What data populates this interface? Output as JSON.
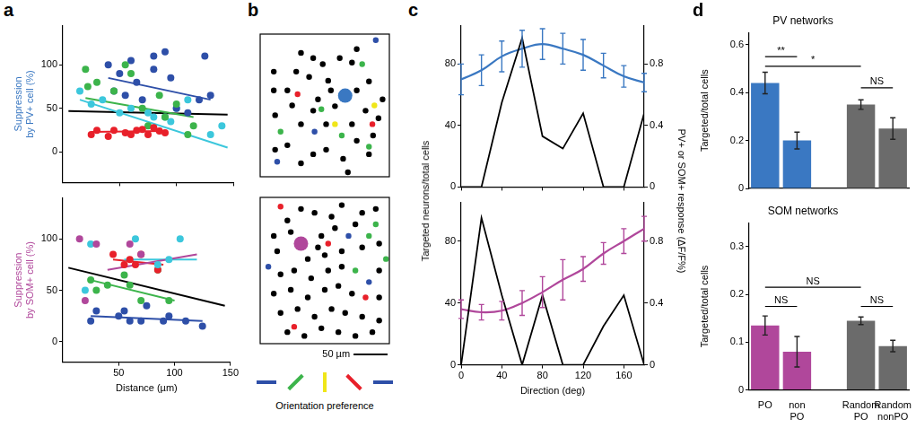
{
  "chart_data": [
    {
      "panel_label": "a",
      "type": "scatter",
      "ylabel": "Suppression by PV+ cell (%)",
      "xlim": [
        0,
        150
      ],
      "xticks": [
        50,
        100,
        150
      ],
      "ylim": [
        -35,
        145
      ],
      "yticks": [
        0,
        50,
        100
      ],
      "grid": false,
      "tick_labels": "y",
      "series": [
        {
          "color": "#e8202a",
          "marker": "circle",
          "x": [
            25,
            30,
            40,
            45,
            55,
            60,
            65,
            70,
            75,
            80,
            85,
            90
          ],
          "values": [
            20,
            25,
            18,
            25,
            22,
            20,
            25,
            26,
            20,
            28,
            24,
            22
          ]
        },
        {
          "color": "#3cb44b",
          "marker": "circle",
          "x": [
            20,
            22,
            30,
            45,
            55,
            60,
            70,
            75,
            85,
            90,
            100,
            110,
            115
          ],
          "values": [
            95,
            75,
            80,
            70,
            100,
            90,
            50,
            30,
            65,
            40,
            55,
            20,
            30
          ]
        },
        {
          "color": "#2e4fa8",
          "marker": "circle",
          "x": [
            40,
            45,
            50,
            55,
            60,
            65,
            70,
            80,
            80,
            90,
            95,
            100,
            110,
            120,
            125,
            130
          ],
          "values": [
            100,
            70,
            90,
            65,
            105,
            80,
            60,
            110,
            95,
            115,
            85,
            50,
            45,
            60,
            110,
            65
          ]
        },
        {
          "color": "#3cc7dc",
          "marker": "circle",
          "x": [
            15,
            25,
            35,
            50,
            60,
            75,
            80,
            90,
            95,
            100,
            110,
            130,
            140
          ],
          "values": [
            70,
            55,
            60,
            45,
            50,
            45,
            40,
            40,
            35,
            50,
            60,
            20,
            30
          ]
        },
        {
          "type": "line",
          "color": "#e8202a",
          "x": [
            25,
            90
          ],
          "values": [
            23,
            24
          ]
        },
        {
          "type": "line",
          "color": "#3cb44b",
          "x": [
            20,
            115
          ],
          "values": [
            62,
            40
          ]
        },
        {
          "type": "line",
          "color": "#2e4fa8",
          "x": [
            40,
            130
          ],
          "values": [
            85,
            60
          ]
        },
        {
          "type": "line",
          "color": "#3cc7dc",
          "x": [
            15,
            145
          ],
          "values": [
            60,
            5
          ]
        },
        {
          "type": "line",
          "color": "#000000",
          "x": [
            5,
            145
          ],
          "values": [
            47,
            43
          ]
        }
      ]
    },
    {
      "type": "scatter",
      "ylabel": "Suppression by SOM+ cell (%)",
      "xlabel": "Distance (µm)",
      "xlim": [
        0,
        150
      ],
      "xticks": [
        50,
        100,
        150
      ],
      "ylim": [
        -20,
        140
      ],
      "yticks": [
        0,
        50,
        100
      ],
      "grid": false,
      "tick_labels": true,
      "series": [
        {
          "color": "#b0479b",
          "marker": "circle",
          "x": [
            15,
            20,
            30,
            60,
            70
          ],
          "values": [
            100,
            40,
            95,
            95,
            85
          ]
        },
        {
          "color": "#3cc7dc",
          "marker": "circle",
          "x": [
            20,
            25,
            65,
            85,
            95,
            105
          ],
          "values": [
            50,
            95,
            100,
            75,
            80,
            100
          ]
        },
        {
          "color": "#e8202a",
          "marker": "circle",
          "x": [
            45,
            55,
            60,
            65,
            70,
            85
          ],
          "values": [
            85,
            75,
            80,
            75,
            85,
            70
          ]
        },
        {
          "color": "#3cb44b",
          "marker": "circle",
          "x": [
            25,
            30,
            40,
            55,
            60,
            70,
            85,
            95
          ],
          "values": [
            60,
            50,
            55,
            65,
            55,
            40,
            70,
            40
          ]
        },
        {
          "color": "#2e4fa8",
          "marker": "circle",
          "x": [
            25,
            30,
            50,
            55,
            60,
            70,
            75,
            90,
            95,
            110,
            125
          ],
          "values": [
            20,
            30,
            25,
            30,
            20,
            20,
            35,
            20,
            25,
            20,
            15
          ]
        },
        {
          "type": "line",
          "color": "#b0479b",
          "x": [
            40,
            120
          ],
          "values": [
            70,
            85
          ]
        },
        {
          "type": "line",
          "color": "#3cc7dc",
          "x": [
            55,
            120
          ],
          "values": [
            80,
            80
          ]
        },
        {
          "type": "line",
          "color": "#e8202a",
          "x": [
            45,
            90
          ],
          "values": [
            80,
            75
          ]
        },
        {
          "type": "line",
          "color": "#3cb44b",
          "x": [
            25,
            100
          ],
          "values": [
            60,
            40
          ]
        },
        {
          "type": "line",
          "color": "#2e4fa8",
          "x": [
            25,
            125
          ],
          "values": [
            25,
            20
          ]
        },
        {
          "type": "line",
          "color": "#000000",
          "x": [
            5,
            145
          ],
          "values": [
            72,
            35
          ]
        }
      ]
    },
    {
      "panel_label": "b",
      "type": "scatter",
      "xlim": [
        0,
        190
      ],
      "ylim": [
        0,
        190
      ],
      "tick_labels": false,
      "series": [
        {
          "color": "#000000",
          "marker": "circle",
          "x": [
            20,
            40,
            60,
            78,
            72,
            92,
            117,
            135,
            142,
            22,
            47,
            60,
            78,
            97,
            100,
            142,
            160,
            174,
            22,
            40,
            60,
            78,
            97,
            122,
            142,
            160,
            166,
            85,
            104,
            135,
            155,
            129,
            20,
            180,
            53,
            110
          ],
          "values": [
            140,
            115,
            165,
            158,
            133,
            150,
            158,
            152,
            170,
            82,
            95,
            70,
            88,
            70,
            128,
            115,
            127,
            78,
            36,
            42,
            18,
            30,
            36,
            24,
            48,
            30,
            55,
            103,
            115,
            70,
            88,
            6,
            115,
            103,
            140,
            94
          ]
        },
        {
          "color": "#e8202a",
          "marker": "circle",
          "x": [
            55,
            165
          ],
          "values": [
            110,
            70
          ]
        },
        {
          "color": "#3cb44b",
          "marker": "circle",
          "x": [
            90,
            150,
            120,
            30,
            160
          ],
          "values": [
            90,
            150,
            55,
            60,
            40
          ]
        },
        {
          "color": "#f0e619",
          "marker": "circle",
          "x": [
            168,
            110
          ],
          "values": [
            95,
            70
          ]
        },
        {
          "color": "#2e4fa8",
          "marker": "circle",
          "x": [
            170,
            25,
            80
          ],
          "values": [
            182,
            20,
            60
          ]
        },
        {
          "color": "#3a78c2",
          "marker": "large",
          "x": [
            125
          ],
          "values": [
            108
          ]
        }
      ]
    },
    {
      "type": "scatter",
      "xlim": [
        0,
        190
      ],
      "ylim": [
        0,
        190
      ],
      "tick_labels": false,
      "scale_bar": {
        "length": 50,
        "label": "50 µm"
      },
      "orientation_legend": {
        "label": "Orientation preference",
        "colors": [
          "#2e4fa8",
          "#3cb44b",
          "#f0e619",
          "#e8202a",
          "#2e4fa8"
        ],
        "orientations": [
          0,
          45,
          90,
          135,
          180
        ]
      },
      "series": [
        {
          "color": "#000000",
          "marker": "circle",
          "x": [
            40,
            60,
            80,
            105,
            120,
            150,
            20,
            45,
            90,
            110,
            140,
            170,
            25,
            70,
            95,
            120,
            150,
            175,
            30,
            50,
            75,
            100,
            120,
            175,
            20,
            45,
            70,
            95,
            115,
            135,
            175,
            30,
            55,
            80,
            105,
            125,
            150,
            175,
            40,
            65,
            90,
            115,
            140,
            165,
            85
          ],
          "values": [
            160,
            175,
            170,
            165,
            180,
            170,
            140,
            145,
            140,
            150,
            155,
            175,
            120,
            110,
            115,
            120,
            125,
            130,
            90,
            95,
            85,
            95,
            100,
            95,
            65,
            70,
            60,
            70,
            75,
            65,
            60,
            40,
            45,
            35,
            45,
            40,
            35,
            30,
            15,
            10,
            20,
            15,
            10,
            15,
            125
          ]
        },
        {
          "color": "#e8202a",
          "marker": "circle",
          "x": [
            30,
            155,
            50,
            100
          ],
          "values": [
            178,
            60,
            22,
            130
          ]
        },
        {
          "color": "#3cb44b",
          "marker": "circle",
          "x": [
            160,
            140,
            185,
            170
          ],
          "values": [
            140,
            95,
            110,
            155
          ]
        },
        {
          "color": "#2e4fa8",
          "marker": "circle",
          "x": [
            130,
            12,
            160
          ],
          "values": [
            140,
            100,
            80
          ]
        },
        {
          "color": "#b0479b",
          "marker": "large",
          "x": [
            60
          ],
          "values": [
            130
          ]
        }
      ]
    },
    {
      "panel_label": "c",
      "type": "line",
      "ylabel": "Targeted neurons/total cells",
      "y2label": "PV+ or SOM+ response (ΔF/F%)",
      "xlim": [
        0,
        180
      ],
      "xticks": [
        0,
        40,
        80,
        120,
        160
      ],
      "ylim": [
        0,
        105
      ],
      "yticks": [
        0,
        40,
        80
      ],
      "y2lim": [
        0,
        1.05
      ],
      "y2ticks": [
        0,
        0.4,
        0.8
      ],
      "grid": false,
      "tick_labels": "y",
      "series": [
        {
          "color": "#000000",
          "x": [
            0,
            20,
            40,
            60,
            80,
            100,
            120,
            140,
            160,
            180
          ],
          "values": [
            0,
            0,
            55,
            97,
            33,
            25,
            48,
            0,
            0,
            48
          ]
        },
        {
          "color": "#3a78c2",
          "axis": "y2",
          "x": [
            0,
            20,
            40,
            60,
            80,
            100,
            120,
            140,
            160,
            180
          ],
          "values": [
            0.7,
            0.76,
            0.85,
            0.9,
            0.93,
            0.9,
            0.86,
            0.79,
            0.72,
            0.68
          ],
          "errors": [
            0.1,
            0.1,
            0.1,
            0.12,
            0.1,
            0.1,
            0.1,
            0.08,
            0.07,
            0.06
          ]
        }
      ]
    },
    {
      "type": "line",
      "xlabel": "Direction (deg)",
      "xlim": [
        0,
        180
      ],
      "xticks": [
        0,
        40,
        80,
        120,
        160
      ],
      "ylim": [
        0,
        105
      ],
      "yticks": [
        0,
        40,
        80
      ],
      "y2lim": [
        0,
        1.05
      ],
      "y2ticks": [
        0,
        0.4,
        0.8
      ],
      "grid": false,
      "tick_labels": true,
      "series": [
        {
          "color": "#000000",
          "x": [
            0,
            20,
            40,
            60,
            80,
            100,
            120,
            140,
            160,
            180
          ],
          "values": [
            0,
            95,
            45,
            0,
            45,
            0,
            0,
            25,
            45,
            0
          ]
        },
        {
          "color": "#b0479b",
          "axis": "y2",
          "x": [
            0,
            20,
            40,
            60,
            80,
            100,
            120,
            140,
            160,
            180
          ],
          "values": [
            0.36,
            0.34,
            0.35,
            0.4,
            0.47,
            0.55,
            0.62,
            0.72,
            0.8,
            0.88
          ],
          "errors": [
            0.06,
            0.05,
            0.06,
            0.08,
            0.1,
            0.13,
            0.08,
            0.07,
            0.08,
            0.08
          ]
        }
      ]
    },
    {
      "panel_label": "d",
      "type": "bar",
      "title": "PV networks",
      "ylabel": "Targeted/total cells",
      "categories": [
        "PO",
        "non PO",
        null,
        "Random PO",
        "Random nonPO"
      ],
      "values": [
        0.44,
        0.2,
        null,
        0.35,
        0.25
      ],
      "errors": [
        0.045,
        0.035,
        null,
        0.02,
        0.045
      ],
      "colors": [
        "#3a78c2",
        "#3a78c2",
        null,
        "#6b6b6b",
        "#6b6b6b"
      ],
      "ylim": [
        0,
        0.65
      ],
      "yticks": [
        0,
        0.2,
        0.4,
        0.6
      ],
      "grid": false,
      "tick_labels": "y",
      "brackets": [
        {
          "from": "PO",
          "to": "non PO",
          "y": 0.55,
          "label": "**"
        },
        {
          "from": "PO",
          "to": "Random PO",
          "y": 0.51,
          "label": "*"
        },
        {
          "from": "Random PO",
          "to": "Random nonPO",
          "y": 0.42,
          "label": "NS"
        }
      ]
    },
    {
      "type": "bar",
      "title": "SOM networks",
      "ylabel": "Targeted/total cells",
      "categories": [
        "PO",
        "non PO",
        null,
        "Random PO",
        "Random nonPO"
      ],
      "values": [
        0.135,
        0.08,
        null,
        0.145,
        0.092
      ],
      "errors": [
        0.02,
        0.032,
        null,
        0.008,
        0.012
      ],
      "colors": [
        "#b0479b",
        "#b0479b",
        null,
        "#6b6b6b",
        "#6b6b6b"
      ],
      "ylim": [
        0,
        0.35
      ],
      "yticks": [
        0,
        0.1,
        0.2,
        0.3
      ],
      "grid": false,
      "tick_labels": true,
      "brackets": [
        {
          "from": "PO",
          "to": "non PO",
          "y": 0.175,
          "label": "NS"
        },
        {
          "from": "PO",
          "to": "Random PO",
          "y": 0.215,
          "label": "NS"
        },
        {
          "from": "Random PO",
          "to": "Random nonPO",
          "y": 0.175,
          "label": "NS"
        }
      ]
    }
  ]
}
